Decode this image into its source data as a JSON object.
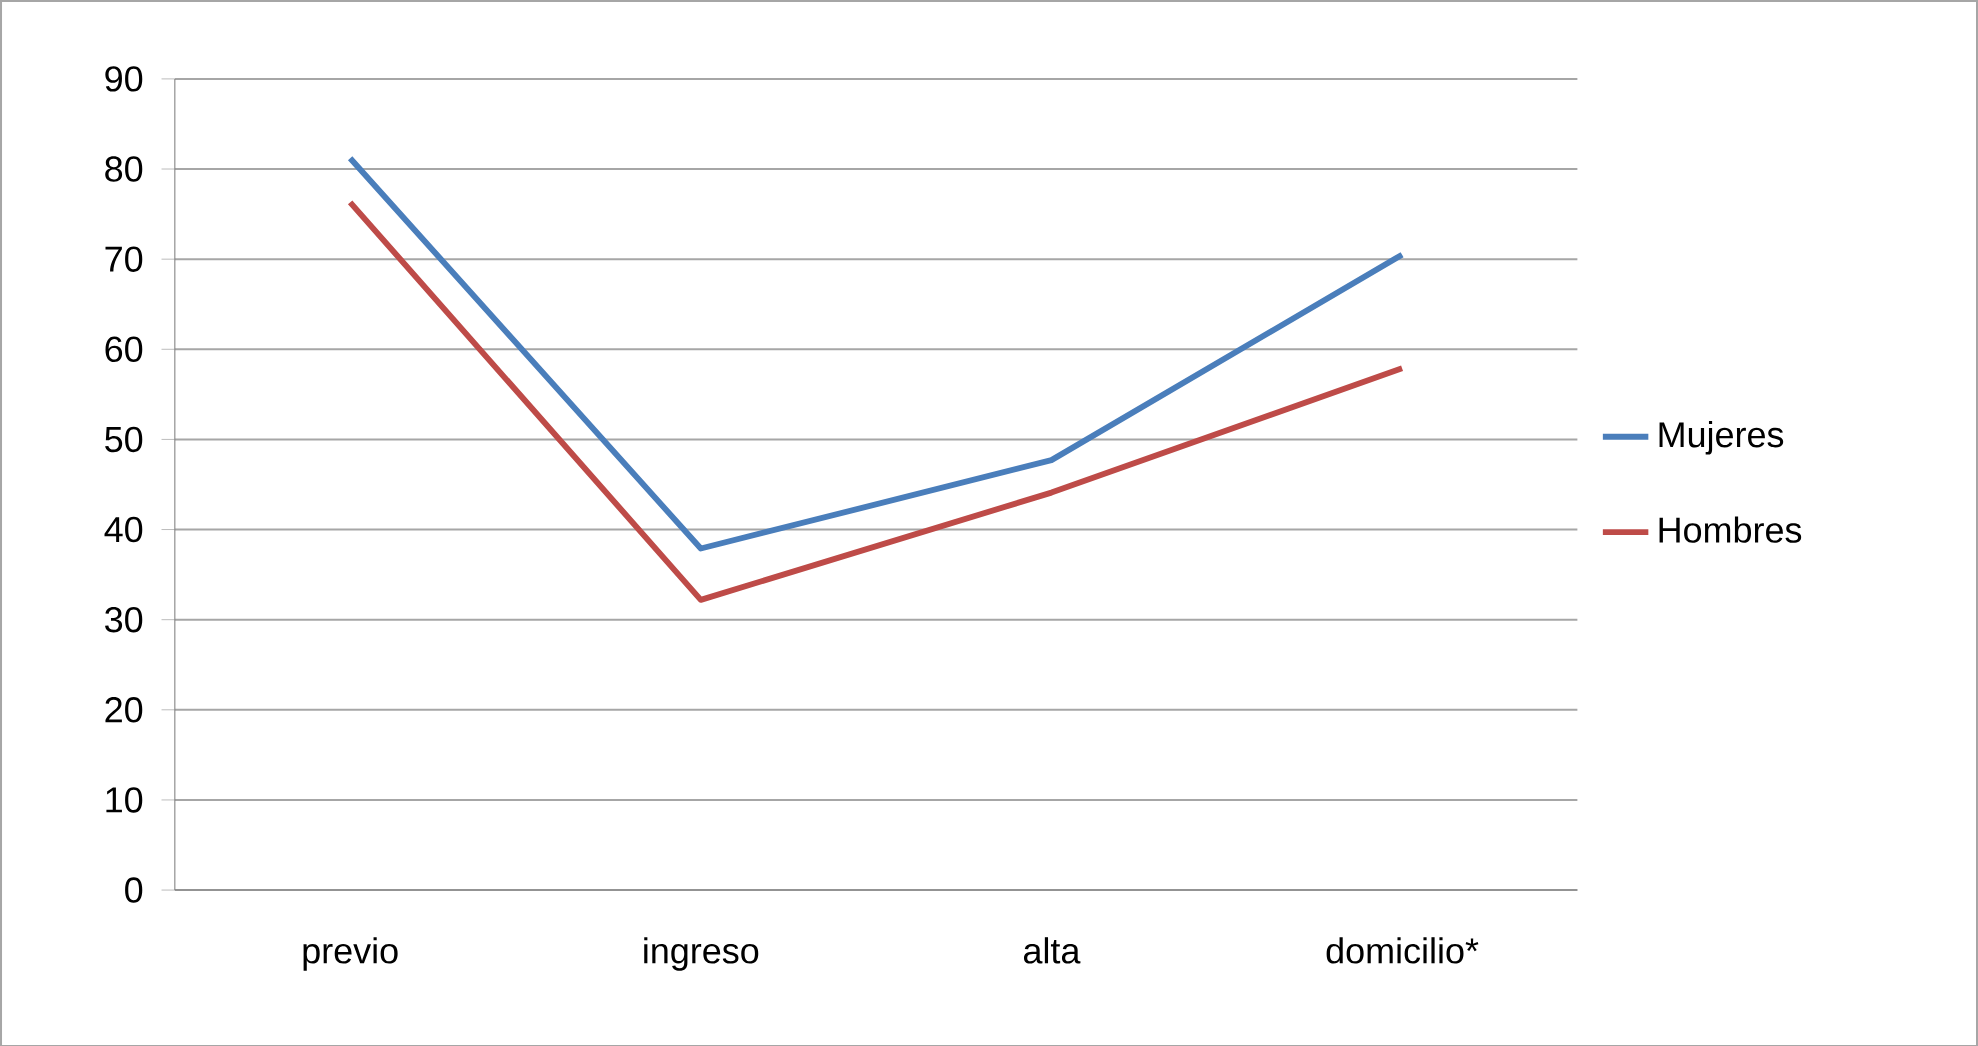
{
  "chart_data": {
    "type": "line",
    "categories": [
      "previo",
      "ingreso",
      "alta",
      "domicilio*"
    ],
    "series": [
      {
        "name": "Mujeres",
        "color": "#4a7ebb",
        "values": [
          81.2,
          37.9,
          47.7,
          70.5
        ]
      },
      {
        "name": "Hombres",
        "color": "#be4b48",
        "values": [
          76.3,
          32.2,
          44.1,
          57.9
        ]
      }
    ],
    "ylim": [
      0,
      90
    ],
    "yticks": [
      0,
      10,
      20,
      30,
      40,
      50,
      60,
      70,
      80,
      90
    ],
    "grid": "y",
    "legend": "right",
    "marker": "none",
    "line_style": "solid"
  }
}
